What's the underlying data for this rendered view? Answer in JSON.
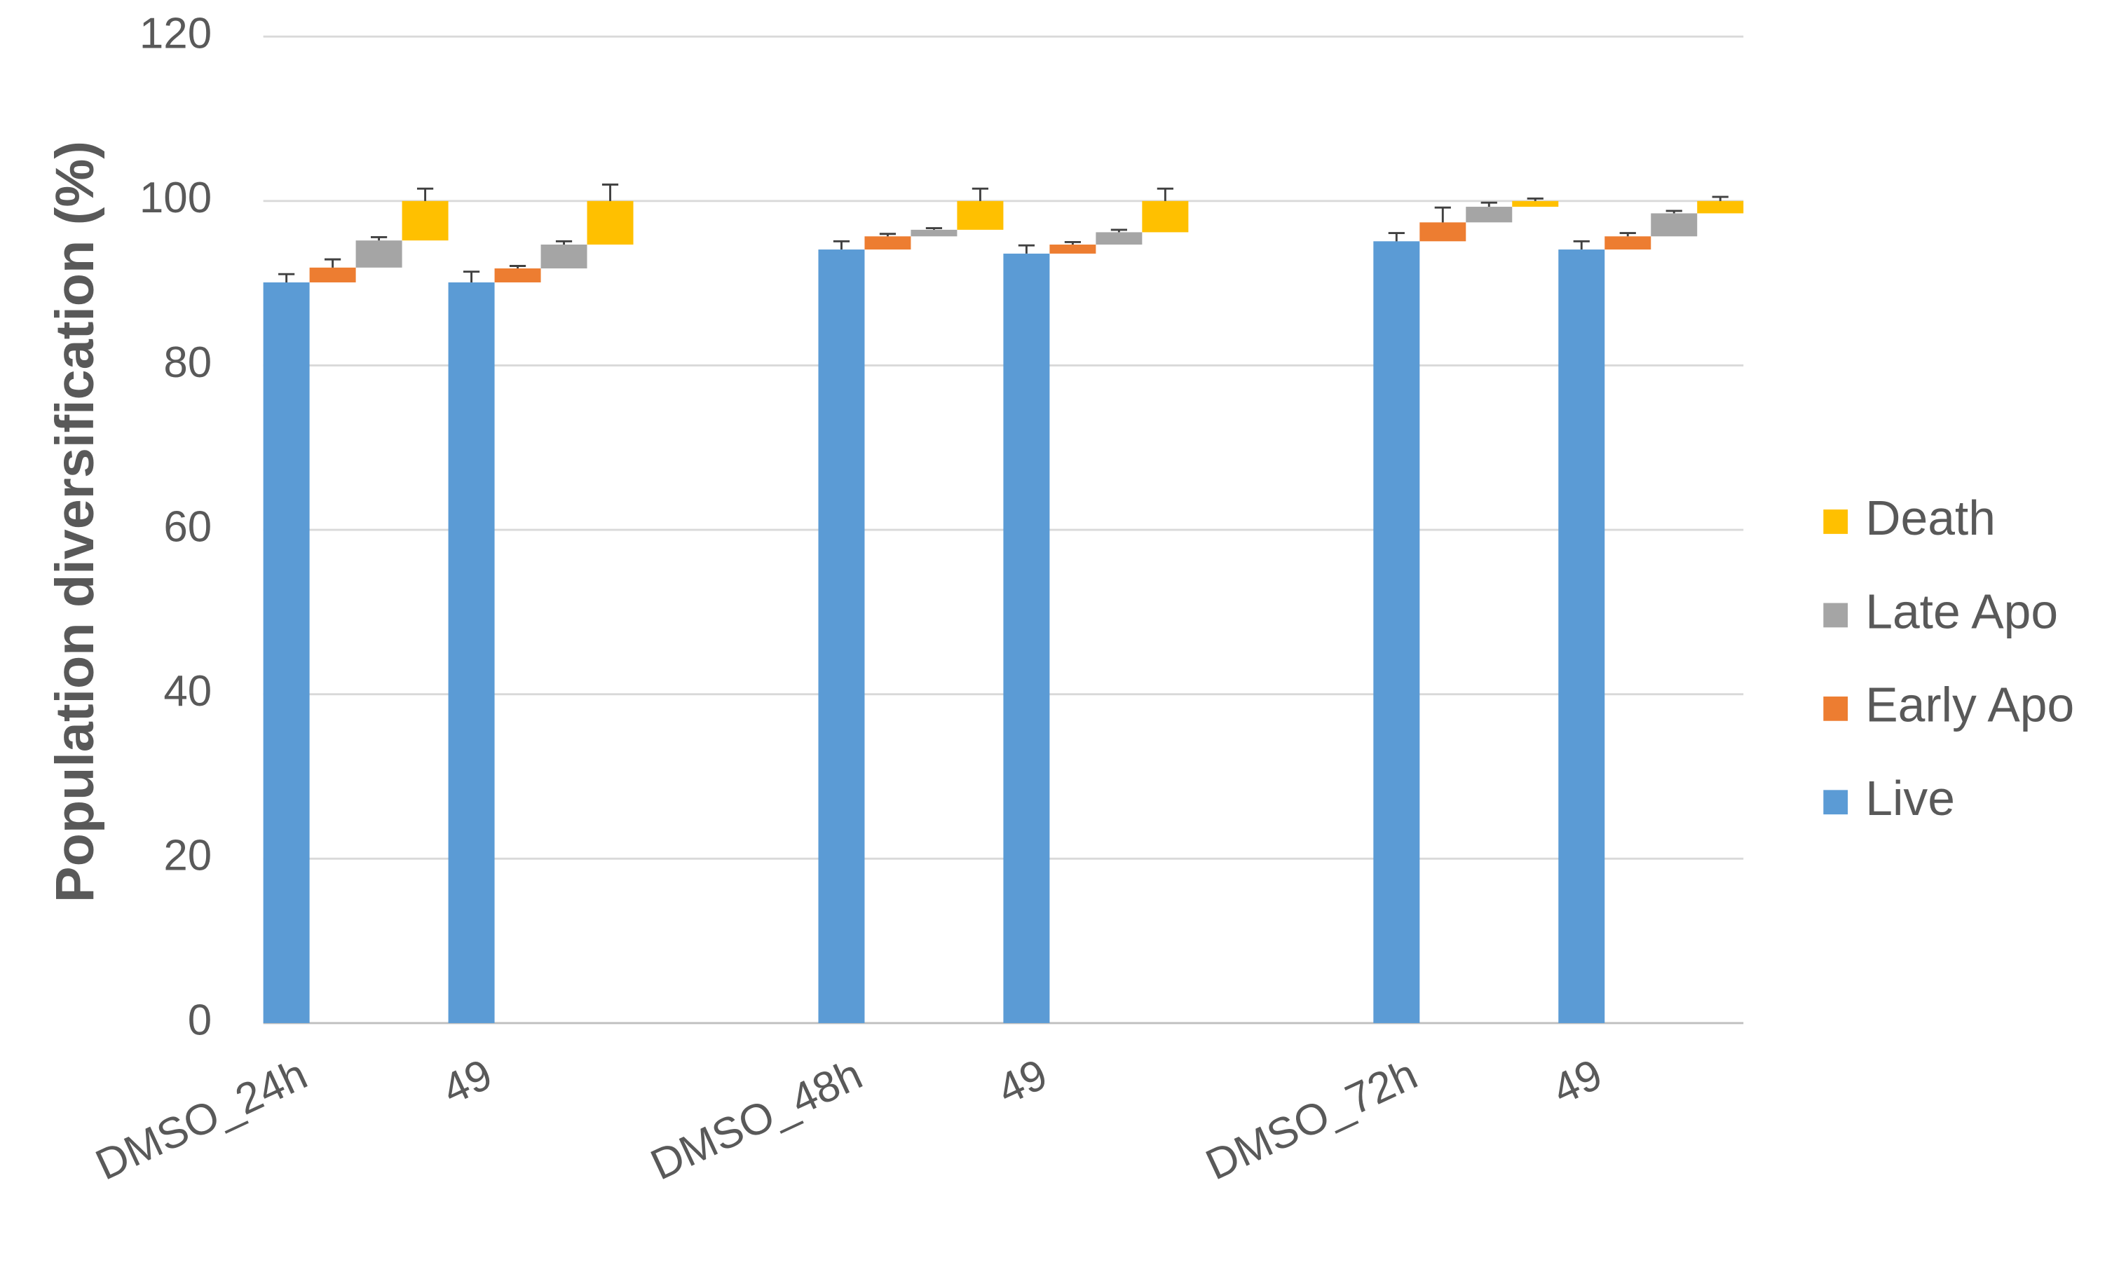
{
  "chart_data": {
    "type": "staggered_stacked_bar",
    "y_label": "Population diversification (%)",
    "categories": [
      "DMSO_24h",
      "49",
      null,
      "DMSO_48h",
      "49",
      null,
      "DMSO_72h",
      "49"
    ],
    "series": [
      {
        "name": "Live",
        "color": "#5b9bd5",
        "values": [
          90.1,
          90.1,
          null,
          94.1,
          93.6,
          null,
          95.1,
          94.1
        ],
        "errors": [
          1.0,
          1.3,
          null,
          1.0,
          1.0,
          null,
          1.0,
          1.0
        ]
      },
      {
        "name": "Early Apo",
        "color": "#ed7d31",
        "values": [
          1.8,
          1.7,
          null,
          1.6,
          1.1,
          null,
          2.3,
          1.6
        ],
        "errors": [
          1.0,
          0.3,
          null,
          0.3,
          0.3,
          null,
          1.8,
          0.4
        ]
      },
      {
        "name": "Late Apo",
        "color": "#a5a5a5",
        "values": [
          3.3,
          2.9,
          null,
          0.8,
          1.5,
          null,
          1.9,
          2.8
        ],
        "errors": [
          0.4,
          0.4,
          null,
          0.2,
          0.3,
          null,
          0.5,
          0.3
        ]
      },
      {
        "name": "Death",
        "color": "#ffc000",
        "values": [
          4.8,
          5.3,
          null,
          3.5,
          3.8,
          null,
          0.7,
          1.5
        ],
        "errors": [
          1.5,
          2.0,
          null,
          1.5,
          1.5,
          null,
          0.3,
          0.5
        ]
      }
    ],
    "ylim": [
      0,
      120
    ],
    "yticks": [
      0,
      20,
      40,
      60,
      80,
      100,
      120
    ],
    "grid": true,
    "legend": "right"
  }
}
